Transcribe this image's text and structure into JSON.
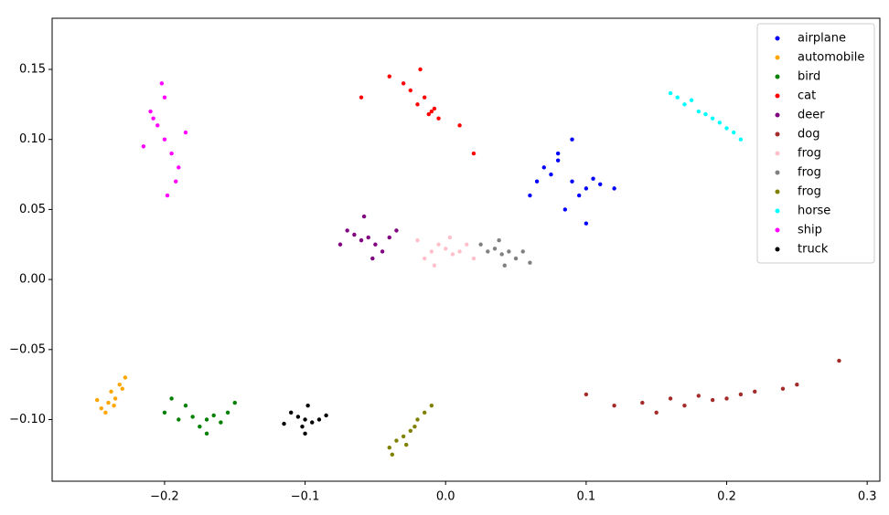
{
  "chart_data": {
    "type": "scatter",
    "xlim": [
      -0.28,
      0.309
    ],
    "ylim": [
      -0.144,
      0.1865
    ],
    "xticks": [
      {
        "value": -0.2,
        "label": "−0.2"
      },
      {
        "value": -0.1,
        "label": "−0.1"
      },
      {
        "value": 0,
        "label": "0.0"
      },
      0.1,
      0.2,
      0.3
    ],
    "yticks": [
      {
        "value": -0.1,
        "label": "−0.10"
      },
      {
        "value": -0.05,
        "label": "−0.05"
      },
      {
        "value": 0,
        "label": "0.00"
      },
      0.05,
      {
        "value": 0.1,
        "label": "0.10"
      },
      0.15
    ],
    "legend": "upper right",
    "series": [
      {
        "name": "airplane",
        "color": "#0000ff",
        "x": [
          0.07,
          0.08,
          0.09,
          0.1,
          0.11,
          0.095,
          0.085,
          0.075,
          0.065,
          0.1,
          0.105,
          0.09,
          0.08,
          0.06,
          0.12
        ],
        "y": [
          0.08,
          0.09,
          0.07,
          0.065,
          0.068,
          0.06,
          0.05,
          0.075,
          0.07,
          0.04,
          0.072,
          0.1,
          0.085,
          0.06,
          0.065
        ]
      },
      {
        "name": "automobile",
        "color": "#ffa500",
        "x": [
          -0.24,
          -0.235,
          -0.245,
          -0.238,
          -0.23,
          -0.242,
          -0.236,
          -0.232,
          -0.248,
          -0.228
        ],
        "y": [
          -0.088,
          -0.085,
          -0.092,
          -0.08,
          -0.078,
          -0.095,
          -0.09,
          -0.075,
          -0.086,
          -0.07
        ]
      },
      {
        "name": "bird",
        "color": "#008000",
        "x": [
          -0.2,
          -0.19,
          -0.18,
          -0.17,
          -0.165,
          -0.16,
          -0.175,
          -0.185,
          -0.155,
          -0.15,
          -0.195,
          -0.17
        ],
        "y": [
          -0.095,
          -0.1,
          -0.098,
          -0.1,
          -0.097,
          -0.102,
          -0.105,
          -0.09,
          -0.095,
          -0.088,
          -0.085,
          -0.11
        ]
      },
      {
        "name": "cat",
        "color": "#ff0000",
        "x": [
          -0.02,
          -0.015,
          -0.01,
          -0.025,
          -0.012,
          -0.03,
          -0.005,
          -0.04,
          0.01,
          -0.06,
          -0.018,
          0.02,
          -0.008
        ],
        "y": [
          0.125,
          0.13,
          0.12,
          0.135,
          0.118,
          0.14,
          0.115,
          0.145,
          0.11,
          0.13,
          0.15,
          0.09,
          0.122
        ]
      },
      {
        "name": "deer",
        "color": "#800080",
        "x": [
          -0.06,
          -0.055,
          -0.05,
          -0.065,
          -0.045,
          -0.07,
          -0.04,
          -0.058,
          -0.052,
          -0.075,
          -0.035
        ],
        "y": [
          0.028,
          0.03,
          0.025,
          0.032,
          0.02,
          0.035,
          0.03,
          0.045,
          0.015,
          0.025,
          0.035
        ]
      },
      {
        "name": "dog",
        "color": "#a52a2a",
        "x": [
          0.12,
          0.14,
          0.16,
          0.17,
          0.18,
          0.19,
          0.2,
          0.21,
          0.22,
          0.24,
          0.25,
          0.1,
          0.28,
          0.15
        ],
        "y": [
          -0.09,
          -0.088,
          -0.085,
          -0.09,
          -0.083,
          -0.086,
          -0.085,
          -0.082,
          -0.08,
          -0.078,
          -0.075,
          -0.082,
          -0.058,
          -0.095
        ]
      },
      {
        "name": "frog",
        "color": "#ffc0cb",
        "x": [
          -0.01,
          -0.005,
          0,
          0.005,
          0.01,
          -0.015,
          0.015,
          -0.02,
          0.02,
          -0.008,
          0.003
        ],
        "y": [
          0.02,
          0.025,
          0.022,
          0.018,
          0.02,
          0.015,
          0.025,
          0.028,
          0.015,
          0.01,
          0.03
        ]
      },
      {
        "name": "frog",
        "color": "#808080",
        "x": [
          0.03,
          0.035,
          0.04,
          0.045,
          0.05,
          0.025,
          0.055,
          0.038,
          0.042,
          0.06
        ],
        "y": [
          0.02,
          0.022,
          0.018,
          0.02,
          0.015,
          0.025,
          0.02,
          0.028,
          0.01,
          0.012
        ]
      },
      {
        "name": "frog",
        "color": "#808000",
        "x": [
          -0.04,
          -0.035,
          -0.03,
          -0.025,
          -0.02,
          -0.015,
          -0.028,
          -0.022,
          -0.038,
          -0.01
        ],
        "y": [
          -0.12,
          -0.115,
          -0.112,
          -0.108,
          -0.1,
          -0.095,
          -0.118,
          -0.105,
          -0.125,
          -0.09
        ]
      },
      {
        "name": "horse",
        "color": "#00ffff",
        "x": [
          0.17,
          0.175,
          0.18,
          0.185,
          0.19,
          0.195,
          0.2,
          0.165,
          0.205,
          0.16,
          0.21
        ],
        "y": [
          0.125,
          0.128,
          0.12,
          0.118,
          0.115,
          0.112,
          0.108,
          0.13,
          0.105,
          0.133,
          0.1
        ]
      },
      {
        "name": "ship",
        "color": "#ff00ff",
        "x": [
          -0.2,
          -0.205,
          -0.195,
          -0.21,
          -0.19,
          -0.2,
          -0.198,
          -0.202,
          -0.185,
          -0.215,
          -0.192,
          -0.208
        ],
        "y": [
          0.1,
          0.11,
          0.09,
          0.12,
          0.08,
          0.13,
          0.06,
          0.14,
          0.105,
          0.095,
          0.07,
          0.115
        ]
      },
      {
        "name": "truck",
        "color": "#000000",
        "x": [
          -0.1,
          -0.105,
          -0.095,
          -0.11,
          -0.09,
          -0.1,
          -0.098,
          -0.102,
          -0.085,
          -0.115
        ],
        "y": [
          -0.1,
          -0.098,
          -0.102,
          -0.095,
          -0.1,
          -0.11,
          -0.09,
          -0.105,
          -0.097,
          -0.103
        ]
      }
    ]
  }
}
